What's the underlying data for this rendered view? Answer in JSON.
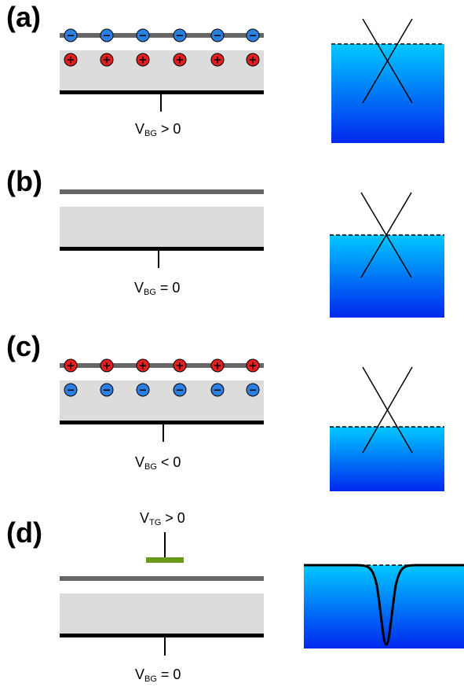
{
  "panels": [
    {
      "id": "a",
      "label": "(a)",
      "voltage": {
        "main": "V",
        "sub": "BG",
        "rest": " > 0"
      },
      "top_charge": "−",
      "bottom_charge": "+",
      "top_color": "#2b7fe0",
      "bottom_color": "#e02020"
    },
    {
      "id": "b",
      "label": "(b)",
      "voltage": {
        "main": "V",
        "sub": "BG",
        "rest": " = 0"
      }
    },
    {
      "id": "c",
      "label": "(c)",
      "voltage": {
        "main": "V",
        "sub": "BG",
        "rest": " < 0"
      },
      "top_charge": "+",
      "bottom_charge": "−",
      "top_color": "#e02020",
      "bottom_color": "#2b7fe0"
    },
    {
      "id": "d",
      "label": "(d)",
      "voltage": {
        "main": "V",
        "sub": "BG",
        "rest": " = 0"
      },
      "top_gate_voltage": {
        "main": "V",
        "sub": "TG",
        "rest": " > 0"
      }
    }
  ],
  "colors": {
    "graphene_layer": "#666666",
    "dielectric": "#dcdcdc",
    "back_gate": "#000000",
    "top_gate": "#6a9a1a",
    "band_top": "#00c8ff",
    "band_bottom": "#0028ee"
  }
}
